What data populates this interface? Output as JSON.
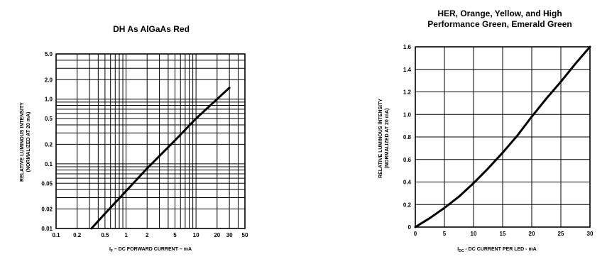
{
  "chart_data": [
    {
      "type": "line",
      "title": "DH As AlGaAs Red",
      "xlabel_main": "I",
      "xlabel_sub": "F",
      "xlabel_rest": " – DC FORWARD CURRENT – mA",
      "ylabel_line1": "RELATIVE LUMINOUS INTENSITY",
      "ylabel_line2": "(NORMALIZED AT 20 mA)",
      "xscale": "log",
      "yscale": "log",
      "xlim": [
        0.1,
        50
      ],
      "ylim": [
        0.01,
        5.0
      ],
      "grid": true,
      "x_ticks": [
        {
          "v": 0.1,
          "label": "0.1"
        },
        {
          "v": 0.2,
          "label": "0.2"
        },
        {
          "v": 0.5,
          "label": "0.5"
        },
        {
          "v": 1,
          "label": "1"
        },
        {
          "v": 2,
          "label": "2"
        },
        {
          "v": 5,
          "label": "5"
        },
        {
          "v": 10,
          "label": "10"
        },
        {
          "v": 20,
          "label": "20"
        },
        {
          "v": 30,
          "label": "30"
        },
        {
          "v": 50,
          "label": "50"
        }
      ],
      "y_ticks": [
        {
          "v": 0.01,
          "label": "0.01"
        },
        {
          "v": 0.02,
          "label": "0.02"
        },
        {
          "v": 0.05,
          "label": "0.05"
        },
        {
          "v": 0.1,
          "label": "0.1"
        },
        {
          "v": 0.2,
          "label": "0.2"
        },
        {
          "v": 0.5,
          "label": "0.5"
        },
        {
          "v": 1.0,
          "label": "1.0"
        },
        {
          "v": 2.0,
          "label": "2.0"
        },
        {
          "v": 5.0,
          "label": "5.0"
        }
      ],
      "series": [
        {
          "x": [
            0.32,
            0.5,
            1,
            2,
            5,
            10,
            20,
            30
          ],
          "y": [
            0.01,
            0.017,
            0.038,
            0.085,
            0.23,
            0.5,
            1.0,
            1.5
          ]
        }
      ]
    },
    {
      "type": "line",
      "title_line1": "HER, Orange, Yellow, and High",
      "title_line2": "Performance Green, Emerald Green",
      "xlabel_main": "I",
      "xlabel_sub": "DC",
      "xlabel_rest": " - DC CURRENT PER LED - mA",
      "ylabel_line1": "RELATIVE LUMINOUS INTENSITY",
      "ylabel_line2": "(NORMALIZED AT 20 mA)",
      "xscale": "linear",
      "yscale": "linear",
      "xlim": [
        0,
        30
      ],
      "ylim": [
        0,
        1.6
      ],
      "grid": true,
      "x_ticks": [
        {
          "v": 0,
          "label": "0"
        },
        {
          "v": 5,
          "label": "5"
        },
        {
          "v": 10,
          "label": "10"
        },
        {
          "v": 15,
          "label": "15"
        },
        {
          "v": 20,
          "label": "20"
        },
        {
          "v": 25,
          "label": "25"
        },
        {
          "v": 30,
          "label": "30"
        }
      ],
      "y_ticks": [
        {
          "v": 0,
          "label": "0"
        },
        {
          "v": 0.2,
          "label": "0.2"
        },
        {
          "v": 0.4,
          "label": "0.4"
        },
        {
          "v": 0.6,
          "label": "0.6"
        },
        {
          "v": 0.8,
          "label": "0.8"
        },
        {
          "v": 1.0,
          "label": "1.0"
        },
        {
          "v": 1.2,
          "label": "1.2"
        },
        {
          "v": 1.4,
          "label": "1.4"
        },
        {
          "v": 1.6,
          "label": "1.6"
        }
      ],
      "series": [
        {
          "x": [
            0,
            2.5,
            5,
            7.5,
            10,
            12.5,
            15,
            17.5,
            20,
            22.5,
            25,
            27.5,
            30
          ],
          "y": [
            0,
            0.08,
            0.17,
            0.27,
            0.39,
            0.52,
            0.66,
            0.81,
            0.98,
            1.14,
            1.29,
            1.45,
            1.6
          ]
        }
      ]
    }
  ]
}
